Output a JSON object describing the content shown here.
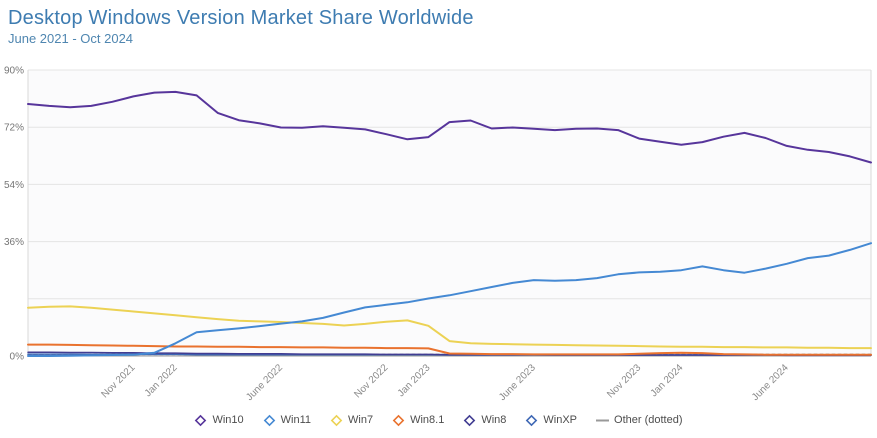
{
  "header": {
    "title": "Desktop Windows Version Market Share Worldwide",
    "subtitle": "June 2021 - Oct 2024"
  },
  "colors": {
    "title_blue": "#3e7cb1",
    "subtitle_blue": "#4f86b0",
    "axis_label_gray": "#767676",
    "x_label_gray": "#8a8a8a",
    "gridline": "#e4e4e4",
    "axis_line": "#9a9a9a",
    "plot_border": "#d9d9d9",
    "plot_bg": "#fbfbfc",
    "legend_text": "#4d4d4d"
  },
  "chart_data": {
    "type": "line",
    "title": "Desktop Windows Version Market Share Worldwide",
    "subtitle": "June 2021 - Oct 2024",
    "ylim": [
      0,
      90
    ],
    "grid": "horizontal-only",
    "legend_position": "bottom",
    "y_ticks": [
      {
        "value": 0,
        "label": "0%"
      },
      {
        "value": 36,
        "label": "36%"
      },
      {
        "value": 54,
        "label": "54%"
      },
      {
        "value": 72,
        "label": "72%"
      },
      {
        "value": 90,
        "label": "90%"
      }
    ],
    "gridline_values": [
      18,
      36,
      54,
      72,
      90
    ],
    "x_ticks": [
      {
        "month_index": 5,
        "label": "Nov 2021"
      },
      {
        "month_index": 7,
        "label": "Jan 2022"
      },
      {
        "month_index": 12,
        "label": "June 2022"
      },
      {
        "month_index": 17,
        "label": "Nov 2022"
      },
      {
        "month_index": 19,
        "label": "Jan 2023"
      },
      {
        "month_index": 24,
        "label": "June 2023"
      },
      {
        "month_index": 29,
        "label": "Nov 2023"
      },
      {
        "month_index": 31,
        "label": "Jan 2024"
      },
      {
        "month_index": 36,
        "label": "June 2024"
      }
    ],
    "months": [
      "Jun 2021",
      "Jul 2021",
      "Aug 2021",
      "Sep 2021",
      "Oct 2021",
      "Nov 2021",
      "Dec 2021",
      "Jan 2022",
      "Feb 2022",
      "Mar 2022",
      "Apr 2022",
      "May 2022",
      "Jun 2022",
      "Jul 2022",
      "Aug 2022",
      "Sep 2022",
      "Oct 2022",
      "Nov 2022",
      "Dec 2022",
      "Jan 2023",
      "Feb 2023",
      "Mar 2023",
      "Apr 2023",
      "May 2023",
      "Jun 2023",
      "Jul 2023",
      "Aug 2023",
      "Sep 2023",
      "Oct 2023",
      "Nov 2023",
      "Dec 2023",
      "Jan 2024",
      "Feb 2024",
      "Mar 2024",
      "Apr 2024",
      "May 2024",
      "Jun 2024",
      "Jul 2024",
      "Aug 2024",
      "Sep 2024",
      "Oct 2024"
    ],
    "series": [
      {
        "name": "Other",
        "legend_label": "Other (dotted)",
        "color": "#999999",
        "style": "dotted",
        "marker": "dash",
        "width": 1.5,
        "values": [
          0.5,
          0.5,
          0.5,
          0.5,
          0.5,
          0.5,
          0.5,
          0.5,
          0.5,
          0.5,
          0.5,
          0.5,
          0.5,
          0.5,
          0.5,
          0.5,
          0.5,
          0.5,
          0.5,
          0.5,
          0.5,
          0.5,
          0.5,
          0.5,
          0.5,
          0.5,
          0.5,
          0.5,
          0.5,
          0.5,
          0.5,
          0.5,
          0.5,
          0.5,
          0.5,
          0.5,
          0.5,
          0.5,
          0.5,
          0.5,
          0.5
        ]
      },
      {
        "name": "WinXP",
        "legend_label": "WinXP",
        "color": "#3f68b5",
        "style": "solid",
        "marker": "diamond",
        "width": 1.5,
        "values": [
          0.6,
          0.6,
          0.6,
          0.5,
          0.5,
          0.5,
          0.5,
          0.5,
          0.4,
          0.4,
          0.4,
          0.4,
          0.4,
          0.4,
          0.4,
          0.4,
          0.4,
          0.4,
          0.4,
          0.4,
          0.3,
          0.3,
          0.3,
          0.3,
          0.3,
          0.3,
          0.3,
          0.3,
          0.3,
          0.3,
          0.3,
          0.3,
          0.3,
          0.3,
          0.3,
          0.3,
          0.3,
          0.3,
          0.3,
          0.3,
          0.3
        ]
      },
      {
        "name": "Win8",
        "legend_label": "Win8",
        "color": "#413d92",
        "style": "solid",
        "marker": "diamond",
        "width": 1.5,
        "values": [
          1.2,
          1.2,
          1.1,
          1.1,
          1.0,
          1.0,
          0.9,
          0.9,
          0.8,
          0.8,
          0.7,
          0.7,
          0.7,
          0.6,
          0.6,
          0.6,
          0.6,
          0.5,
          0.5,
          0.5,
          0.4,
          0.4,
          0.4,
          0.4,
          0.4,
          0.3,
          0.3,
          0.3,
          0.3,
          0.3,
          0.3,
          0.3,
          0.3,
          0.3,
          0.3,
          0.3,
          0.2,
          0.2,
          0.2,
          0.2,
          0.2
        ]
      },
      {
        "name": "Win8.1",
        "legend_label": "Win8.1",
        "color": "#e9722e",
        "style": "solid",
        "marker": "diamond",
        "width": 2,
        "values": [
          3.6,
          3.6,
          3.5,
          3.4,
          3.3,
          3.2,
          3.1,
          3.0,
          3.0,
          2.9,
          2.9,
          2.8,
          2.8,
          2.7,
          2.7,
          2.6,
          2.6,
          2.5,
          2.5,
          2.4,
          0.8,
          0.7,
          0.6,
          0.6,
          0.5,
          0.5,
          0.5,
          0.5,
          0.5,
          0.7,
          0.9,
          1.0,
          0.9,
          0.6,
          0.5,
          0.4,
          0.4,
          0.4,
          0.4,
          0.4,
          0.4
        ]
      },
      {
        "name": "Win7",
        "legend_label": "Win7",
        "color": "#ecd254",
        "style": "solid",
        "marker": "diamond",
        "width": 2,
        "values": [
          15.2,
          15.5,
          15.6,
          15.2,
          14.6,
          14.0,
          13.4,
          12.8,
          12.2,
          11.6,
          11.1,
          10.9,
          10.7,
          10.4,
          10.1,
          9.6,
          10.1,
          10.8,
          11.2,
          9.5,
          4.7,
          4.0,
          3.8,
          3.7,
          3.6,
          3.5,
          3.4,
          3.3,
          3.2,
          3.1,
          3.0,
          2.9,
          2.9,
          2.8,
          2.8,
          2.7,
          2.7,
          2.6,
          2.6,
          2.5,
          2.5
        ]
      },
      {
        "name": "Win11",
        "legend_label": "Win11",
        "color": "#4589d3",
        "style": "solid",
        "marker": "diamond",
        "width": 2,
        "values": [
          0.0,
          0.0,
          0.1,
          0.2,
          0.3,
          0.4,
          1.0,
          4.0,
          7.5,
          8.1,
          8.7,
          9.4,
          10.2,
          10.9,
          12.0,
          13.7,
          15.3,
          16.1,
          16.9,
          18.1,
          19.1,
          20.4,
          21.7,
          23.0,
          23.9,
          23.7,
          23.9,
          24.5,
          25.7,
          26.3,
          26.5,
          27.0,
          28.2,
          27.0,
          26.2,
          27.5,
          29.0,
          30.8,
          31.6,
          33.4,
          35.5
        ]
      },
      {
        "name": "Win10",
        "legend_label": "Win10",
        "color": "#57359b",
        "style": "solid",
        "marker": "diamond",
        "width": 2,
        "values": [
          79.3,
          78.7,
          78.3,
          78.7,
          80.0,
          81.7,
          82.9,
          83.1,
          82.0,
          76.5,
          74.2,
          73.2,
          71.9,
          71.8,
          72.3,
          71.8,
          71.3,
          69.8,
          68.2,
          68.9,
          73.6,
          74.1,
          71.6,
          71.9,
          71.5,
          71.1,
          71.5,
          71.6,
          71.1,
          68.4,
          67.4,
          66.5,
          67.3,
          69.0,
          70.2,
          68.6,
          66.1,
          64.9,
          64.2,
          62.8,
          60.9
        ]
      }
    ],
    "legend_order": [
      "Win10",
      "Win11",
      "Win7",
      "Win8.1",
      "Win8",
      "WinXP",
      "Other"
    ]
  }
}
